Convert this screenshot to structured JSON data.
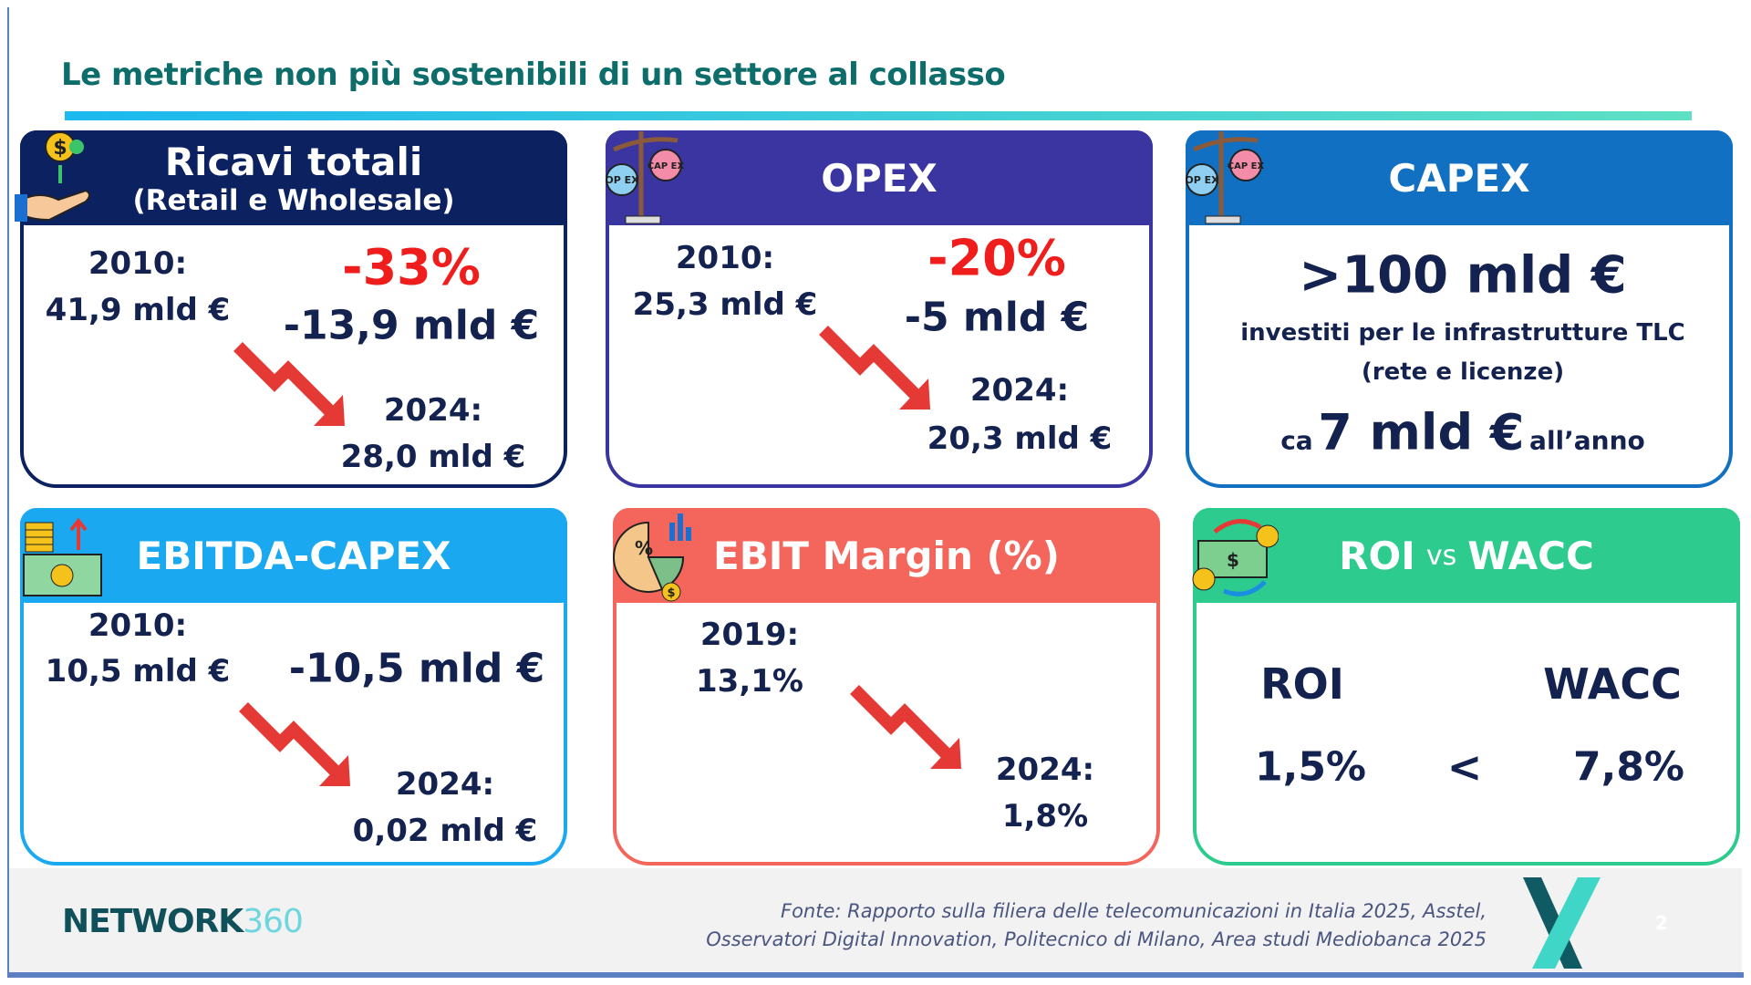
{
  "title": "Le metriche non più sostenibili di un settore al collasso",
  "cards": {
    "ricavi": {
      "title": "Ricavi totali",
      "subtitle": "(Retail e Wholesale)",
      "y1": "2010:",
      "v1": "41,9 mld €",
      "pct": "-33%",
      "delta": "-13,9 mld €",
      "y2": "2024:",
      "v2": "28,0 mld €",
      "color": "#0b2160"
    },
    "opex": {
      "title": "OPEX",
      "y1": "2010:",
      "v1": "25,3 mld €",
      "pct": "-20%",
      "delta": "-5 mld €",
      "y2": "2024:",
      "v2": "20,3 mld €",
      "color": "#3a35a0"
    },
    "capex": {
      "title": "CAPEX",
      "big": ">100 mld €",
      "line1": "investiti per le infrastrutture TLC",
      "line2": "(rete e licenze)",
      "ca": "ca",
      "annual": "7 mld €",
      "per_year": "all’anno",
      "color": "#1170c2"
    },
    "ebitda": {
      "title": "EBITDA-CAPEX",
      "y1": "2010:",
      "v1": "10,5 mld €",
      "delta": "-10,5 mld €",
      "y2": "2024:",
      "v2": "0,02 mld €",
      "color": "#1aa9f0"
    },
    "ebit": {
      "title": "EBIT Margin (%)",
      "y1": "2019:",
      "v1": "13,1%",
      "y2": "2024:",
      "v2": "1,8%",
      "color": "#f4665b"
    },
    "roi": {
      "title_a": "ROI",
      "title_vs": "vs",
      "title_b": "WACC",
      "l1": "ROI",
      "l2": "WACC",
      "v1": "1,5%",
      "cmp": "<",
      "v2": "7,8%",
      "color": "#2ecb8e"
    }
  },
  "icon_labels": {
    "op": "OP EX",
    "cap": "CAP EX",
    "pct": "%",
    "dollar": "$"
  },
  "footer": {
    "logo_main": "NETWORK",
    "logo_num": "360",
    "source_line1": "Fonte: Rapporto sulla filiera delle telecomunicazioni in Italia 2025, Asstel,",
    "source_line2": "Osservatori Digital Innovation, Politecnico di Milano, Area studi Mediobanca 2025",
    "page": "2"
  }
}
